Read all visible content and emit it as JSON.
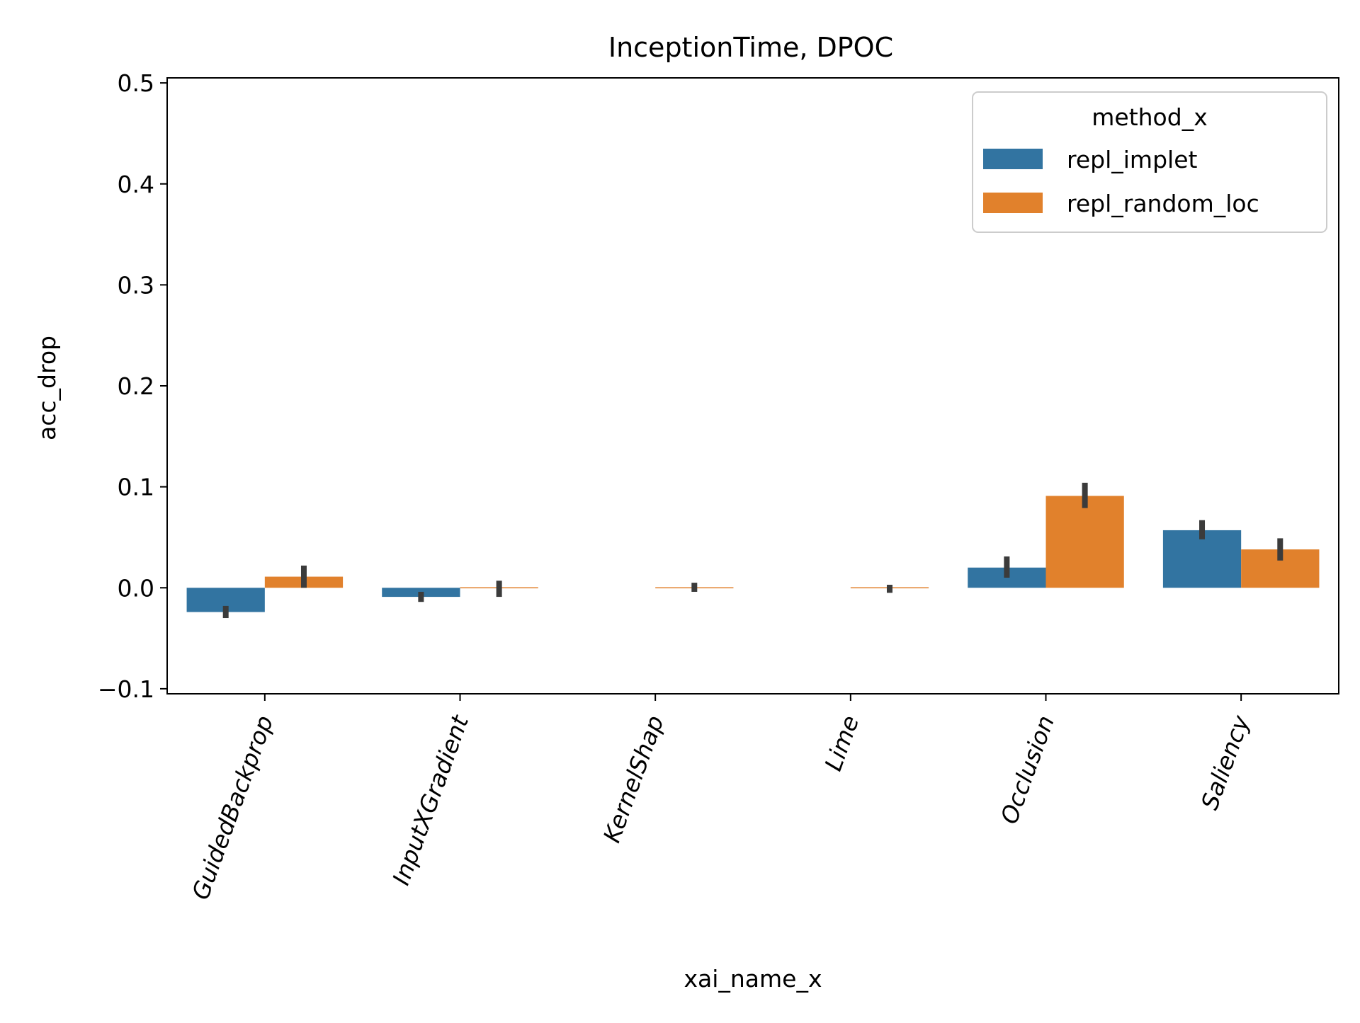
{
  "chart_data": {
    "type": "bar",
    "title": "InceptionTime, DPOC",
    "xlabel": "xai_name_x",
    "ylabel": "acc_drop",
    "ylim": [
      -0.105,
      0.505
    ],
    "yticks": [
      -0.1,
      0.0,
      0.1,
      0.2,
      0.3,
      0.4,
      0.5
    ],
    "ytick_labels": [
      "−0.1",
      "0.0",
      "0.1",
      "0.2",
      "0.3",
      "0.4",
      "0.5"
    ],
    "categories": [
      "GuidedBackprop",
      "InputXGradient",
      "KernelShap",
      "Lime",
      "Occlusion",
      "Saliency"
    ],
    "legend": {
      "title": "method_x",
      "placement": "top-right"
    },
    "grid": false,
    "series": [
      {
        "name": "repl_implet",
        "color": "#3274a1",
        "values": [
          -0.024,
          -0.009,
          null,
          null,
          0.02,
          0.057
        ],
        "err_low": [
          -0.03,
          -0.014,
          null,
          null,
          0.01,
          0.048
        ],
        "err_high": [
          -0.018,
          -0.004,
          null,
          null,
          0.031,
          0.067
        ]
      },
      {
        "name": "repl_random_loc",
        "color": "#e1812c",
        "values": [
          0.011,
          -0.001,
          0.001,
          -0.001,
          0.091,
          0.038
        ],
        "err_low": [
          0.0,
          -0.009,
          -0.004,
          -0.005,
          0.079,
          0.027
        ],
        "err_high": [
          0.022,
          0.007,
          0.005,
          0.003,
          0.104,
          0.049
        ]
      }
    ],
    "error_bar_color": "#3b3b3b"
  }
}
